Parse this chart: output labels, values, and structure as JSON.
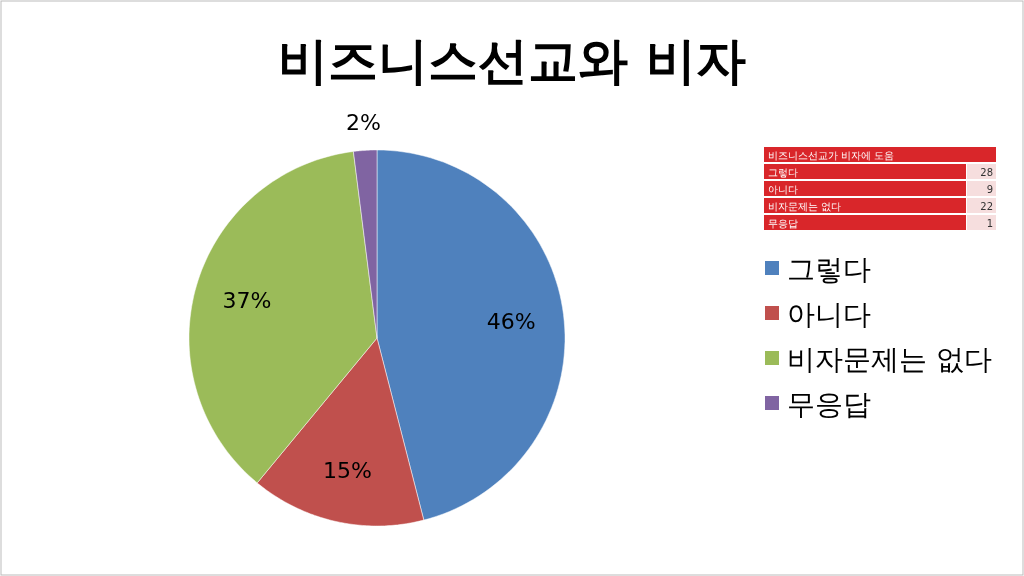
{
  "chart_data": {
    "type": "pie",
    "title": "비즈니스선교와 비자",
    "categories": [
      "그렇다",
      "아니다",
      "비자문제는 없다",
      "무응답"
    ],
    "values": [
      46,
      15,
      37,
      2
    ],
    "colors": [
      "#4f81bd",
      "#c0504d",
      "#9bbb59",
      "#8064a2"
    ],
    "value_labels": [
      "46%",
      "15%",
      "37%",
      "2%"
    ],
    "annotations": [
      "비즈니스선교가 비자에 도움",
      "28",
      "9",
      "22",
      "1"
    ],
    "legend": "right"
  }
}
